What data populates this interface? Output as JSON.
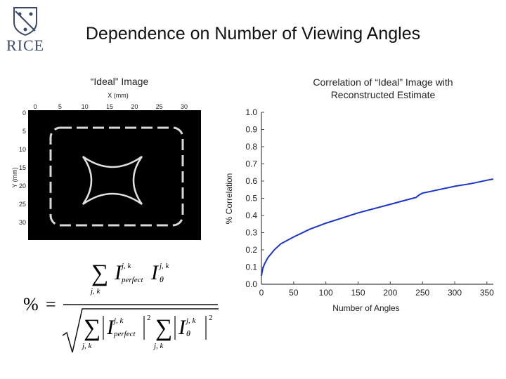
{
  "logo": {
    "text": "RICE"
  },
  "title": "Dependence on Number of Viewing Angles",
  "left_caption": "“Ideal” Image",
  "right_caption_line1": "Correlation of “Ideal” Image with",
  "right_caption_line2": "Reconstructed Estimate",
  "ideal_image": {
    "x_axis_label": "X (mm)",
    "y_axis_label": "Y (mm)",
    "x_ticks": [
      "0",
      "5",
      "10",
      "15",
      "20",
      "25",
      "30"
    ],
    "y_ticks": [
      "0",
      "5",
      "10",
      "15",
      "20",
      "25",
      "30"
    ]
  },
  "formula": {
    "percent": "%",
    "equals": "=",
    "sum": "∑",
    "I": "I",
    "sup": "j, k",
    "perfect": "perfect",
    "theta": "θ",
    "sub": "j, k",
    "squared": "2"
  },
  "chart_data": {
    "type": "line",
    "xlabel": "Number of Angles",
    "ylabel": "% Correlation",
    "xlim": [
      0,
      360
    ],
    "ylim": [
      0,
      1
    ],
    "x_ticks": [
      0,
      50,
      100,
      150,
      200,
      250,
      300,
      350
    ],
    "y_ticks": [
      "0.0",
      "0.1",
      "0.2",
      "0.3",
      "0.4",
      "0.5",
      "0.6",
      "0.7",
      "0.8",
      "0.9",
      "1.0"
    ],
    "series": [
      {
        "color": "#1a33cc",
        "x": [
          0,
          2,
          5,
          10,
          20,
          30,
          40,
          50,
          75,
          100,
          125,
          150,
          175,
          200,
          225,
          240,
          245,
          250,
          275,
          300,
          325,
          350,
          360
        ],
        "y": [
          0.05,
          0.09,
          0.12,
          0.155,
          0.2,
          0.235,
          0.255,
          0.275,
          0.32,
          0.355,
          0.385,
          0.415,
          0.44,
          0.465,
          0.49,
          0.505,
          0.52,
          0.53,
          0.55,
          0.57,
          0.585,
          0.605,
          0.612
        ]
      }
    ]
  }
}
